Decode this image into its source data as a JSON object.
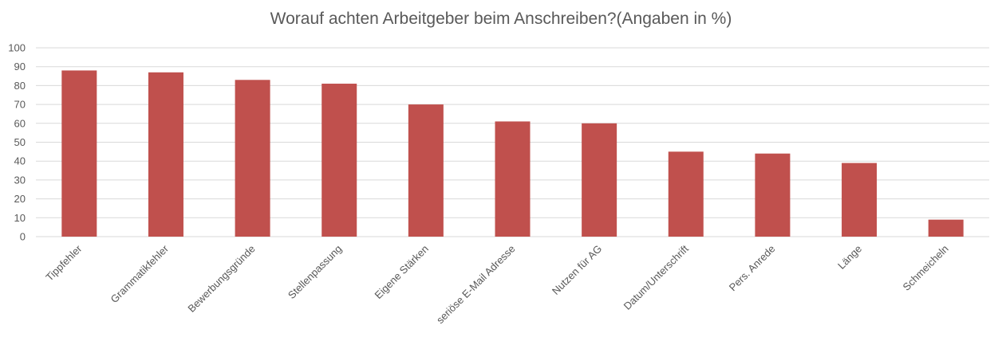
{
  "chart_data": {
    "type": "bar",
    "title": "Worauf achten Arbeitgeber beim Anschreiben?(Angaben in %)",
    "xlabel": "",
    "ylabel": "",
    "categories": [
      "Tippfehler",
      "Grammatikfehler",
      "Bewerbungsgründe",
      "Stellenpassung",
      "Eigene Stärken",
      "seriöse E-Mail Adresse",
      "Nutzen für AG",
      "Datum/Unterschrift",
      "Pers. Anrede",
      "Länge",
      "Schmeicheln"
    ],
    "values": [
      88,
      87,
      83,
      81,
      70,
      61,
      60,
      45,
      44,
      39,
      9
    ],
    "ylim": [
      0,
      100
    ],
    "yticks": [
      0,
      10,
      20,
      30,
      40,
      50,
      60,
      70,
      80,
      90,
      100
    ],
    "grid": true,
    "legend": "none",
    "colors": {
      "bar": "#c0504d",
      "grid": "#d9d9d9",
      "text": "#595959"
    }
  }
}
